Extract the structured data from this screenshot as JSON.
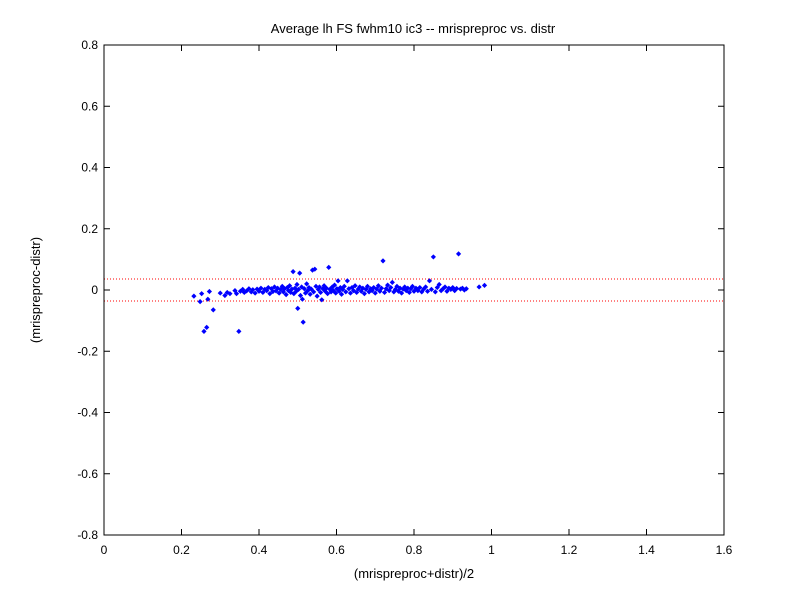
{
  "chart_data": {
    "type": "scatter",
    "title": "Average lh FS fwhm10 ic3 -- mrispreproc vs. distr",
    "xlabel": "(mrispreproc+distr)/2",
    "ylabel": "(mrispreproc-distr)",
    "xlim": [
      0,
      1.6
    ],
    "ylim": [
      -0.8,
      0.8
    ],
    "xticks": [
      "0",
      "0.2",
      "0.4",
      "0.6",
      "0.8",
      "1",
      "1.2",
      "1.4",
      "1.6"
    ],
    "yticks": [
      "-0.8",
      "-0.6",
      "-0.4",
      "-0.2",
      "0",
      "0.2",
      "0.4",
      "0.6",
      "0.8"
    ],
    "grid": false,
    "colors": {
      "points": "#0000ff",
      "reference_lines": "#ff0000",
      "axes": "#000000"
    },
    "reference_lines": [
      0.036,
      -0.036
    ],
    "series": [
      {
        "marker": "diamond",
        "points": [
          [
            0.232,
            -0.02
          ],
          [
            0.248,
            -0.038
          ],
          [
            0.252,
            -0.012
          ],
          [
            0.258,
            -0.135
          ],
          [
            0.265,
            -0.122
          ],
          [
            0.268,
            -0.03
          ],
          [
            0.272,
            -0.005
          ],
          [
            0.282,
            -0.065
          ],
          [
            0.3,
            -0.01
          ],
          [
            0.312,
            -0.018
          ],
          [
            0.318,
            -0.008
          ],
          [
            0.325,
            -0.012
          ],
          [
            0.338,
            -0.002
          ],
          [
            0.342,
            -0.012
          ],
          [
            0.348,
            -0.135
          ],
          [
            0.352,
            -0.004
          ],
          [
            0.358,
            0.002
          ],
          [
            0.362,
            -0.008
          ],
          [
            0.368,
            -0.003
          ],
          [
            0.374,
            0.004
          ],
          [
            0.38,
            -0.006
          ],
          [
            0.384,
            0.001
          ],
          [
            0.39,
            -0.01
          ],
          [
            0.395,
            0.003
          ],
          [
            0.4,
            -0.004
          ],
          [
            0.405,
            0.006
          ],
          [
            0.41,
            -0.008
          ],
          [
            0.415,
            0.002
          ],
          [
            0.42,
            -0.002
          ],
          [
            0.424,
            0.008
          ],
          [
            0.428,
            -0.012
          ],
          [
            0.432,
            0.004
          ],
          [
            0.436,
            -0.005
          ],
          [
            0.44,
            0.01
          ],
          [
            0.444,
            -0.003
          ],
          [
            0.448,
            0.006
          ],
          [
            0.452,
            -0.01
          ],
          [
            0.456,
            0.002
          ],
          [
            0.46,
            0.012
          ],
          [
            0.463,
            -0.006
          ],
          [
            0.466,
            0.004
          ],
          [
            0.47,
            -0.015
          ],
          [
            0.473,
            0.008
          ],
          [
            0.476,
            -0.002
          ],
          [
            0.479,
            0.014
          ],
          [
            0.482,
            -0.008
          ],
          [
            0.485,
            0.003
          ],
          [
            0.488,
            0.06
          ],
          [
            0.49,
            -0.012
          ],
          [
            0.493,
            0.006
          ],
          [
            0.496,
            -0.004
          ],
          [
            0.498,
            0.018
          ],
          [
            0.5,
            -0.06
          ],
          [
            0.502,
            0.002
          ],
          [
            0.505,
            0.055
          ],
          [
            0.507,
            -0.018
          ],
          [
            0.51,
            0.01
          ],
          [
            0.512,
            -0.03
          ],
          [
            0.514,
            -0.105
          ],
          [
            0.517,
            0.004
          ],
          [
            0.52,
            -0.01
          ],
          [
            0.523,
            0.02
          ],
          [
            0.526,
            -0.002
          ],
          [
            0.529,
            0.008
          ],
          [
            0.532,
            -0.014
          ],
          [
            0.535,
            0.003
          ],
          [
            0.538,
            0.065
          ],
          [
            0.541,
            -0.006
          ],
          [
            0.544,
            0.068
          ],
          [
            0.547,
            0.012
          ],
          [
            0.55,
            -0.02
          ],
          [
            0.553,
            0.002
          ],
          [
            0.556,
            0.01
          ],
          [
            0.559,
            -0.008
          ],
          [
            0.562,
            -0.032
          ],
          [
            0.565,
            0.004
          ],
          [
            0.568,
            0.014
          ],
          [
            0.571,
            -0.004
          ],
          [
            0.574,
            0.006
          ],
          [
            0.577,
            -0.012
          ],
          [
            0.58,
            0.074
          ],
          [
            0.583,
            0.002
          ],
          [
            0.586,
            -0.006
          ],
          [
            0.589,
            0.01
          ],
          [
            0.592,
            -0.002
          ],
          [
            0.595,
            0.016
          ],
          [
            0.598,
            -0.01
          ],
          [
            0.601,
            0.004
          ],
          [
            0.604,
            0.03
          ],
          [
            0.607,
            -0.004
          ],
          [
            0.61,
            0.008
          ],
          [
            0.613,
            -0.014
          ],
          [
            0.616,
            0.002
          ],
          [
            0.62,
            0.012
          ],
          [
            0.624,
            -0.006
          ],
          [
            0.628,
            0.03
          ],
          [
            0.632,
            0.004
          ],
          [
            0.636,
            -0.01
          ],
          [
            0.64,
            0.008
          ],
          [
            0.644,
            -0.002
          ],
          [
            0.648,
            0.014
          ],
          [
            0.652,
            -0.008
          ],
          [
            0.656,
            0.003
          ],
          [
            0.66,
            0.01
          ],
          [
            0.664,
            -0.004
          ],
          [
            0.668,
            0.006
          ],
          [
            0.672,
            -0.012
          ],
          [
            0.676,
            0.002
          ],
          [
            0.68,
            0.012
          ],
          [
            0.684,
            -0.006
          ],
          [
            0.688,
            0.004
          ],
          [
            0.692,
            -0.002
          ],
          [
            0.696,
            0.008
          ],
          [
            0.7,
            -0.01
          ],
          [
            0.704,
            0.003
          ],
          [
            0.708,
            0.014
          ],
          [
            0.712,
            -0.004
          ],
          [
            0.716,
            0.006
          ],
          [
            0.72,
            0.095
          ],
          [
            0.724,
            -0.008
          ],
          [
            0.728,
            0.004
          ],
          [
            0.732,
            0.016
          ],
          [
            0.736,
            -0.002
          ],
          [
            0.74,
            0.008
          ],
          [
            0.744,
            0.025
          ],
          [
            0.748,
            -0.006
          ],
          [
            0.752,
            0.002
          ],
          [
            0.756,
            0.012
          ],
          [
            0.76,
            -0.004
          ],
          [
            0.764,
            0.006
          ],
          [
            0.768,
            -0.01
          ],
          [
            0.772,
            0.003
          ],
          [
            0.776,
            0.01
          ],
          [
            0.78,
            -0.002
          ],
          [
            0.784,
            0.006
          ],
          [
            0.788,
            -0.008
          ],
          [
            0.792,
            0.004
          ],
          [
            0.796,
            0.012
          ],
          [
            0.8,
            -0.004
          ],
          [
            0.805,
            0.006
          ],
          [
            0.81,
            -0.002
          ],
          [
            0.815,
            0.008
          ],
          [
            0.82,
            -0.006
          ],
          [
            0.825,
            0.003
          ],
          [
            0.83,
            0.01
          ],
          [
            0.835,
            -0.004
          ],
          [
            0.84,
            0.03
          ],
          [
            0.845,
            0.002
          ],
          [
            0.85,
            0.108
          ],
          [
            0.855,
            -0.006
          ],
          [
            0.86,
            0.008
          ],
          [
            0.865,
            0.018
          ],
          [
            0.87,
            -0.002
          ],
          [
            0.875,
            0.004
          ],
          [
            0.88,
            0.01
          ],
          [
            0.885,
            -0.004
          ],
          [
            0.89,
            0.006
          ],
          [
            0.895,
            0.002
          ],
          [
            0.9,
            0.008
          ],
          [
            0.905,
            -0.002
          ],
          [
            0.91,
            0.005
          ],
          [
            0.915,
            0.118
          ],
          [
            0.92,
            0.003
          ],
          [
            0.925,
            0.006
          ],
          [
            0.93,
            0.0
          ],
          [
            0.935,
            0.004
          ],
          [
            0.968,
            0.01
          ],
          [
            0.982,
            0.015
          ]
        ]
      }
    ]
  }
}
